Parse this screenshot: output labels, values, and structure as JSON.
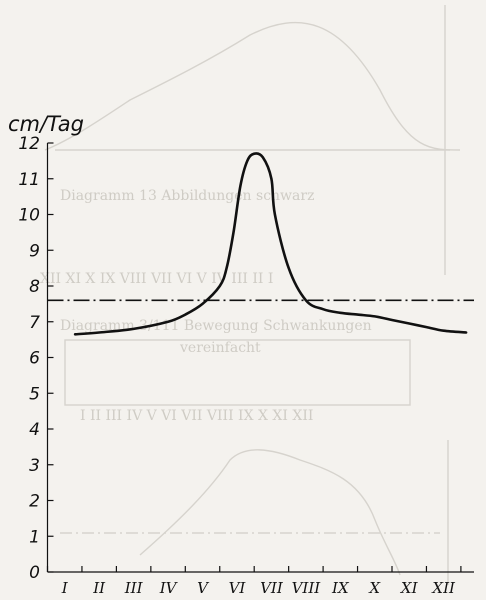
{
  "chart_data": {
    "type": "line",
    "title": "",
    "xlabel": "",
    "ylabel": "cm/Tag",
    "categories": [
      "I",
      "II",
      "III",
      "IV",
      "V",
      "VI",
      "VII",
      "VIII",
      "IX",
      "X",
      "XI",
      "XII"
    ],
    "ylim": [
      0,
      12
    ],
    "yticks": [
      "0",
      "1",
      "2",
      "3",
      "4",
      "5",
      "6",
      "7",
      "8",
      "9",
      "10",
      "11",
      "12"
    ],
    "grid": false,
    "series": [
      {
        "x": [
          0.8,
          1.5,
          2.5,
          3.5,
          4.0,
          4.5,
          5.0,
          5.2,
          5.4,
          5.6,
          5.8,
          6.0,
          6.25,
          6.5,
          6.6,
          7.0,
          7.5,
          8.0,
          8.5,
          9.0,
          9.5,
          10.0,
          10.5,
          11.0,
          11.5,
          12.15
        ],
        "values": [
          6.65,
          6.7,
          6.8,
          7.0,
          7.2,
          7.5,
          8.0,
          8.5,
          9.5,
          10.8,
          11.5,
          11.7,
          11.6,
          11.0,
          10.0,
          8.5,
          7.6,
          7.35,
          7.25,
          7.2,
          7.15,
          7.05,
          6.95,
          6.85,
          6.75,
          6.7
        ]
      }
    ],
    "reference_line": {
      "y": 7.6,
      "style": "dash-dot"
    }
  }
}
